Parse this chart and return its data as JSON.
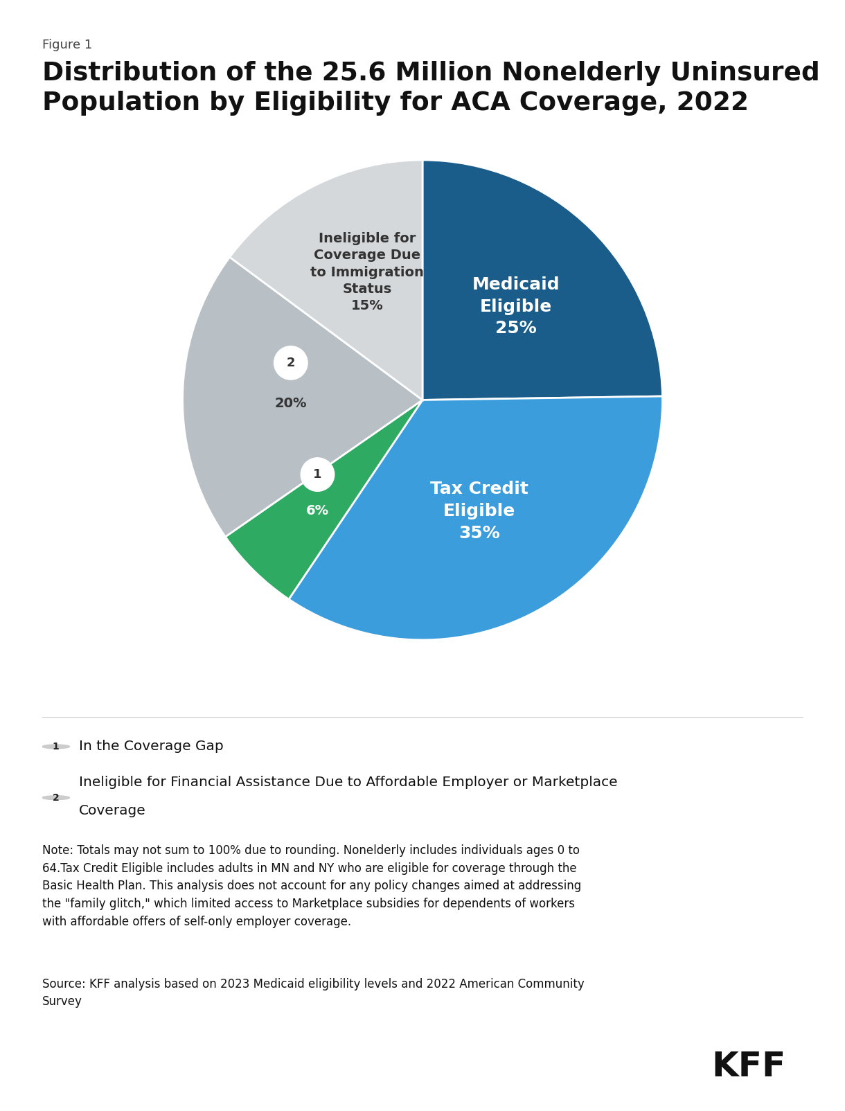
{
  "figure_label": "Figure 1",
  "title": "Distribution of the 25.6 Million Nonelderly Uninsured\nPopulation by Eligibility for ACA Coverage, 2022",
  "slices": [
    {
      "label": "Medicaid\nEligible\n25%",
      "value": 25,
      "color": "#1a5c8a",
      "text_color": "#ffffff"
    },
    {
      "label": "Tax Credit\nEligible\n35%",
      "value": 35,
      "color": "#3b9ddb",
      "text_color": "#ffffff"
    },
    {
      "label": "6%",
      "value": 6,
      "color": "#2eaa62",
      "text_color": "#ffffff",
      "number": "1"
    },
    {
      "label": "20%",
      "value": 20,
      "color": "#b8bfc5",
      "text_color": "#2c3e50",
      "number": "2"
    },
    {
      "label": "Ineligible for\nCoverage Due\nto Immigration\nStatus\n15%",
      "value": 15,
      "color": "#d5d8da",
      "text_color": "#2c3e50"
    }
  ],
  "legend_items": [
    {
      "number": "1",
      "text": "In the Coverage Gap"
    },
    {
      "number": "2",
      "text": "Ineligible for Financial Assistance Due to Affordable Employer or Marketplace\nCoverage"
    }
  ],
  "note_text": "Note: Totals may not sum to 100% due to rounding. Nonelderly includes individuals ages 0 to\n64.Tax Credit Eligible includes adults in MN and NY who are eligible for coverage through the\nBasic Health Plan. This analysis does not account for any policy changes aimed at addressing\nthe \"family glitch,\" which limited access to Marketplace subsidies for dependents of workers\nwith affordable offers of self-only employer coverage.",
  "source_text": "Source: KFF analysis based on 2023 Medicaid eligibility levels and 2022 American Community\nSurvey",
  "kff_label": "KFF",
  "background_color": "#ffffff"
}
